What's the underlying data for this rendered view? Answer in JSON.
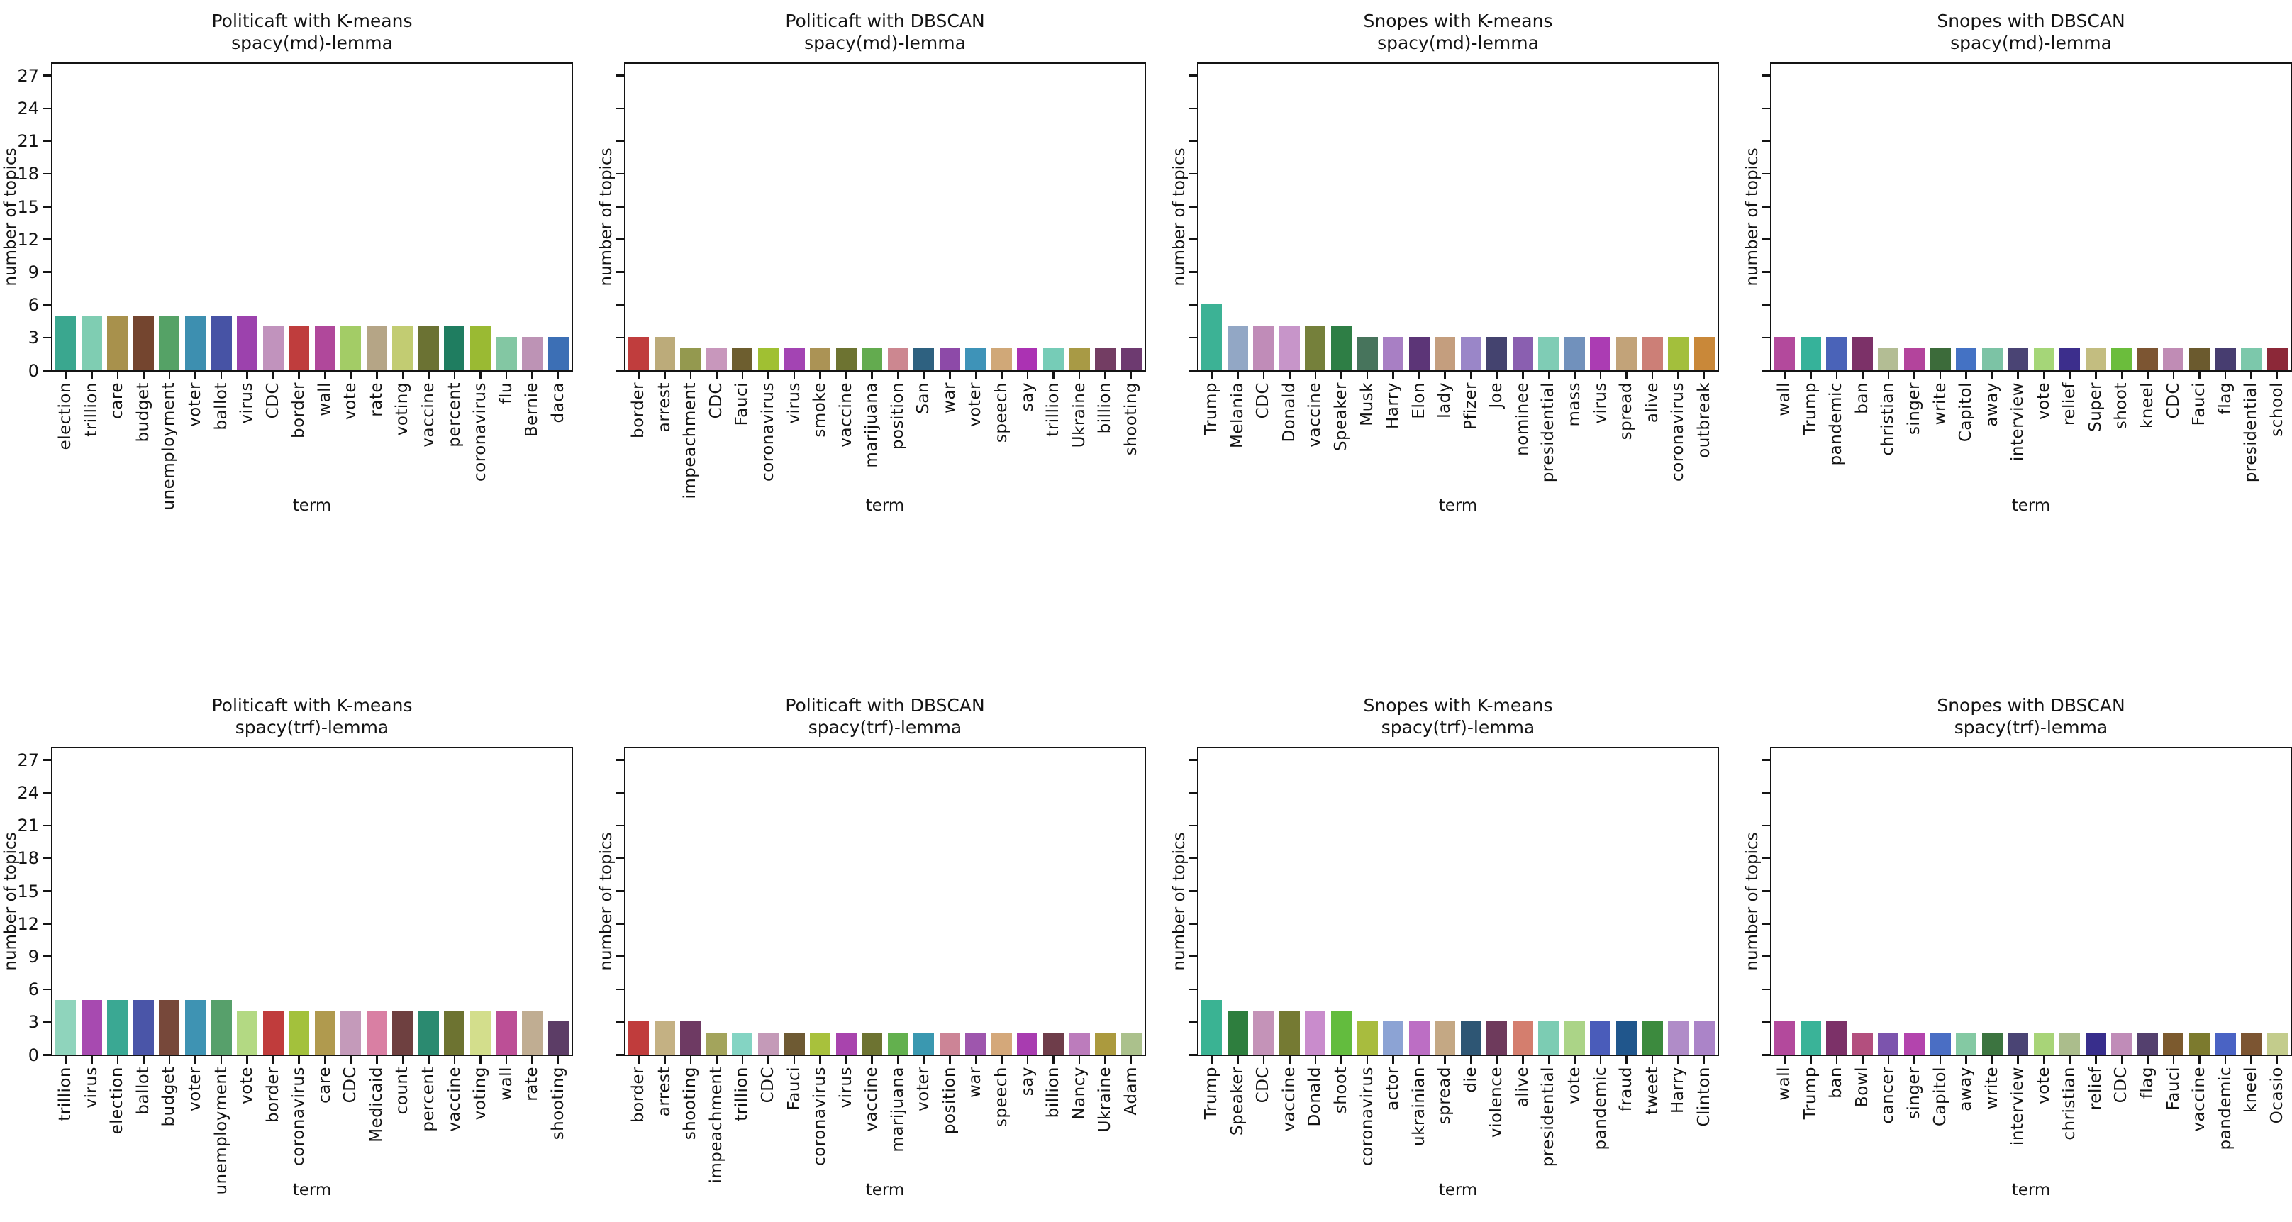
{
  "figure": {
    "ylabel": "number of topics",
    "xlabel": "term",
    "yticks": [
      0,
      3,
      6,
      9,
      12,
      15,
      18,
      21,
      24,
      27
    ],
    "ymax": 28,
    "frame_color": "#141414"
  },
  "chart_data": [
    {
      "type": "bar",
      "title": "Politicaft with K-means\nspacy(md)-lemma",
      "row": 0,
      "col": 0,
      "show_ytick_labels": true,
      "xlabel": "term",
      "ylabel": "number of topics",
      "ylim": [
        0,
        28
      ],
      "categories": [
        "election",
        "trillion",
        "care",
        "budget",
        "unemployment",
        "voter",
        "ballot",
        "virus",
        "CDC",
        "border",
        "wall",
        "vote",
        "rate",
        "voting",
        "vaccine",
        "percent",
        "coronavirus",
        "flu",
        "Bernie",
        "daca"
      ],
      "values": [
        5,
        5,
        5,
        5,
        5,
        5,
        5,
        5,
        4,
        4,
        4,
        4,
        4,
        4,
        4,
        4,
        4,
        3,
        3,
        3
      ],
      "colors": [
        "#3aa78f",
        "#7fcdb2",
        "#a8914c",
        "#74452f",
        "#55a266",
        "#3d8fb0",
        "#4753a5",
        "#9c42ad",
        "#c193bd",
        "#bf3d3d",
        "#b0489b",
        "#a3cc66",
        "#b5a586",
        "#c2cc72",
        "#6b7233",
        "#1f7d60",
        "#9aba33",
        "#83c7a3",
        "#bd93b5",
        "#3c6fb5"
      ]
    },
    {
      "type": "bar",
      "title": "Politicaft with DBSCAN\nspacy(md)-lemma",
      "row": 0,
      "col": 1,
      "show_ytick_labels": false,
      "xlabel": "term",
      "ylabel": "number of topics",
      "ylim": [
        0,
        28
      ],
      "categories": [
        "border",
        "arrest",
        "impeachment",
        "CDC",
        "Fauci",
        "coronavirus",
        "virus",
        "smoke",
        "vaccine",
        "marijuana",
        "position",
        "San",
        "war",
        "voter",
        "speech",
        "say",
        "trillion",
        "Ukraine",
        "billion",
        "shooting"
      ],
      "values": [
        3,
        3,
        2,
        2,
        2,
        2,
        2,
        2,
        2,
        2,
        2,
        2,
        2,
        2,
        2,
        2,
        2,
        2,
        2,
        2
      ],
      "colors": [
        "#c03d3d",
        "#bcab7a",
        "#94994f",
        "#c897bc",
        "#6d5e2f",
        "#a0c032",
        "#a344b3",
        "#ab9355",
        "#6d7331",
        "#63ab4f",
        "#cc8790",
        "#2e6180",
        "#8d4aa8",
        "#3e93b8",
        "#d0a878",
        "#ab32b3",
        "#76ccb7",
        "#a89a45",
        "#733d63",
        "#6d3a70"
      ]
    },
    {
      "type": "bar",
      "title": "Snopes with K-means\nspacy(md)-lemma",
      "row": 0,
      "col": 2,
      "show_ytick_labels": false,
      "xlabel": "term",
      "ylabel": "number of topics",
      "ylim": [
        0,
        28
      ],
      "categories": [
        "Trump",
        "Melania",
        "CDC",
        "Donald",
        "vaccine",
        "Speaker",
        "Musk",
        "Harry",
        "Elon",
        "lady",
        "Pfizer",
        "Joe",
        "nominee",
        "presidential",
        "mass",
        "virus",
        "spread",
        "alive",
        "coronavirus",
        "outbreak"
      ],
      "values": [
        6,
        4,
        4,
        4,
        4,
        4,
        3,
        3,
        3,
        3,
        3,
        3,
        3,
        3,
        3,
        3,
        3,
        3,
        3,
        3
      ],
      "colors": [
        "#3cb295",
        "#92a7c5",
        "#c08cb8",
        "#c795c9",
        "#75803b",
        "#2e7e45",
        "#47745c",
        "#a87fc4",
        "#5c3577",
        "#c49e7e",
        "#9a86c8",
        "#44436f",
        "#8a5fb0",
        "#7fccb5",
        "#7191bc",
        "#ab3cb3",
        "#c2a379",
        "#cc7f77",
        "#a3bf3c",
        "#c98839"
      ]
    },
    {
      "type": "bar",
      "title": "Snopes with DBSCAN\nspacy(md)-lemma",
      "row": 0,
      "col": 3,
      "show_ytick_labels": false,
      "xlabel": "term",
      "ylabel": "number of topics",
      "ylim": [
        0,
        28
      ],
      "categories": [
        "wall",
        "Trump",
        "pandemic",
        "ban",
        "christian",
        "singer",
        "write",
        "Capitol",
        "away",
        "interview",
        "vote",
        "relief",
        "Super",
        "shoot",
        "kneel",
        "CDC",
        "Fauci",
        "flag",
        "presidential",
        "school"
      ],
      "values": [
        3,
        3,
        3,
        3,
        2,
        2,
        2,
        2,
        2,
        2,
        2,
        2,
        2,
        2,
        2,
        2,
        2,
        2,
        2,
        2
      ],
      "colors": [
        "#b3499c",
        "#36b29a",
        "#4a63b8",
        "#7c3168",
        "#b3bd94",
        "#b3449c",
        "#3c6b3a",
        "#4472c4",
        "#7cc3a5",
        "#4a4474",
        "#a5d678",
        "#3c2e8c",
        "#c3bd80",
        "#6bbd3c",
        "#7c5532",
        "#c08cb5",
        "#6b5a2e",
        "#473d70",
        "#7cc8ab",
        "#8c2838"
      ]
    },
    {
      "type": "bar",
      "title": "Politicaft with K-means\nspacy(trf)-lemma",
      "row": 1,
      "col": 0,
      "show_ytick_labels": true,
      "xlabel": "term",
      "ylabel": "number of topics",
      "ylim": [
        0,
        28
      ],
      "categories": [
        "trillion",
        "virus",
        "election",
        "ballot",
        "budget",
        "voter",
        "unemployment",
        "vote",
        "border",
        "coronavirus",
        "care",
        "CDC",
        "Medicaid",
        "count",
        "percent",
        "vaccine",
        "voting",
        "wall",
        "rate",
        "shooting"
      ],
      "values": [
        5,
        5,
        5,
        5,
        5,
        5,
        5,
        4,
        4,
        4,
        4,
        4,
        4,
        4,
        4,
        4,
        4,
        4,
        4,
        3
      ],
      "colors": [
        "#8fd4bc",
        "#a74ab0",
        "#3aa893",
        "#4a55a8",
        "#77483a",
        "#3e93b3",
        "#57a06b",
        "#b3d983",
        "#c03c3c",
        "#a3c13c",
        "#b09a4e",
        "#c49aba",
        "#d97fa3",
        "#6e4040",
        "#2b8a70",
        "#6d7331",
        "#d3de8c",
        "#bc4f96",
        "#c0ad92",
        "#5c3d66"
      ]
    },
    {
      "type": "bar",
      "title": "Politicaft with DBSCAN\nspacy(trf)-lemma",
      "row": 1,
      "col": 1,
      "show_ytick_labels": false,
      "xlabel": "term",
      "ylabel": "number of topics",
      "ylim": [
        0,
        28
      ],
      "categories": [
        "border",
        "arrest",
        "shooting",
        "impeachment",
        "trillion",
        "CDC",
        "Fauci",
        "coronavirus",
        "virus",
        "vaccine",
        "marijuana",
        "voter",
        "position",
        "war",
        "speech",
        "say",
        "billion",
        "Nancy",
        "Ukraine",
        "Adam"
      ],
      "values": [
        3,
        3,
        3,
        2,
        2,
        2,
        2,
        2,
        2,
        2,
        2,
        2,
        2,
        2,
        2,
        2,
        2,
        2,
        2,
        2
      ],
      "colors": [
        "#c03c3c",
        "#c4b183",
        "#6e3a63",
        "#a3a45c",
        "#84d4c3",
        "#c49ab8",
        "#6e5a33",
        "#a8c13c",
        "#a844ad",
        "#6d7331",
        "#63b04e",
        "#3a98b0",
        "#cc8496",
        "#9e56ad",
        "#d4a87a",
        "#a83cb0",
        "#6e3d4a",
        "#bc7cbc",
        "#ab9a3e",
        "#abc18c"
      ]
    },
    {
      "type": "bar",
      "title": "Snopes with K-means\nspacy(trf)-lemma",
      "row": 1,
      "col": 2,
      "show_ytick_labels": false,
      "xlabel": "term",
      "ylabel": "number of topics",
      "ylim": [
        0,
        28
      ],
      "categories": [
        "Trump",
        "Speaker",
        "CDC",
        "vaccine",
        "Donald",
        "shoot",
        "coronavirus",
        "actor",
        "ukrainian",
        "spread",
        "die",
        "violence",
        "alive",
        "presidential",
        "vote",
        "pandemic",
        "fraud",
        "tweet",
        "Harry",
        "Clinton"
      ],
      "values": [
        5,
        4,
        4,
        4,
        4,
        4,
        3,
        3,
        3,
        3,
        3,
        3,
        3,
        3,
        3,
        3,
        3,
        3,
        3,
        3
      ],
      "colors": [
        "#3ab393",
        "#2e7e3e",
        "#c493b8",
        "#757a33",
        "#c98ccc",
        "#63bc3e",
        "#a8bc3e",
        "#8ca3d4",
        "#bc6ec4",
        "#c4a884",
        "#2e5674",
        "#6e3a5c",
        "#d47e6e",
        "#7cccb3",
        "#abd487",
        "#4a5cba",
        "#20568c",
        "#3c8a3e",
        "#b08cc8",
        "#ab84c8"
      ]
    },
    {
      "type": "bar",
      "title": "Snopes with DBSCAN\nspacy(trf)-lemma",
      "row": 1,
      "col": 3,
      "show_ytick_labels": false,
      "xlabel": "term",
      "ylabel": "number of topics",
      "ylim": [
        0,
        28
      ],
      "categories": [
        "wall",
        "Trump",
        "ban",
        "Bowl",
        "cancer",
        "singer",
        "Capitol",
        "away",
        "write",
        "interview",
        "vote",
        "christian",
        "relief",
        "CDC",
        "flag",
        "Fauci",
        "vaccine",
        "pandemic",
        "kneel",
        "Ocasio"
      ],
      "values": [
        3,
        3,
        3,
        2,
        2,
        2,
        2,
        2,
        2,
        2,
        2,
        2,
        2,
        2,
        2,
        2,
        2,
        2,
        2,
        2
      ],
      "colors": [
        "#b3499c",
        "#3ab398",
        "#7c3168",
        "#b34f7e",
        "#7c54ad",
        "#b344ad",
        "#4a6ec4",
        "#84c9a3",
        "#3c7440",
        "#4a4474",
        "#a8d478",
        "#abbd8c",
        "#382e8c",
        "#c08cb8",
        "#54406e",
        "#7c5a2e",
        "#7c7a2e",
        "#4a63c4",
        "#7c5532",
        "#c3cc8c"
      ]
    }
  ]
}
